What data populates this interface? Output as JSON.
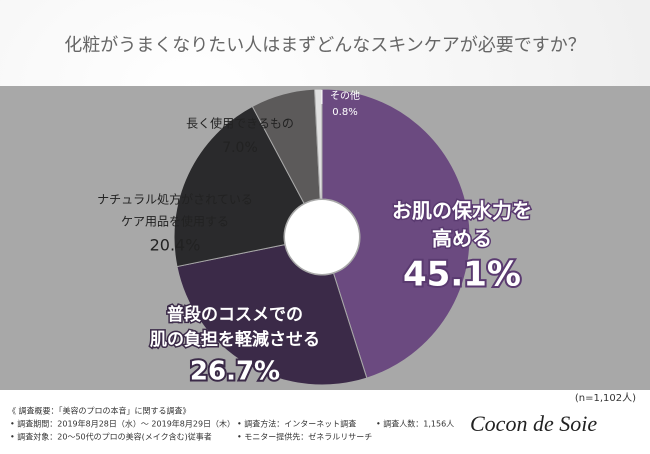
{
  "chart_data": {
    "type": "donut",
    "title": "化粧がうまくなりたい人はまずどんなスキンケアが必要ですか？",
    "categories": [
      [
        "お肌の保水力を",
        "高める"
      ],
      [
        "普段のコスメでの",
        "肌の負担を軽減させる"
      ],
      [
        "ナチュラル処方がされている",
        "ケア用品を使用する"
      ],
      [
        "長く使用できるもの"
      ],
      [
        "その他"
      ]
    ],
    "values": [
      45.1,
      26.7,
      20.4,
      7.0,
      0.8
    ],
    "value_labels": [
      "45.1%",
      "26.7%",
      "20.4%",
      "7.0%",
      "0.8%"
    ],
    "colors": [
      "#6b4a80",
      "#3b2a48",
      "#2a2a2c",
      "#5c5a5a",
      "#e0e0e0"
    ],
    "sample": "(n=1,102人)",
    "notes": [
      "《 調査概要：「美容のプロの本音」に関する調査》",
      "• 調査期間：2019年8月28日（水）～ 2019年8月29日（木）",
      "• 調査方法：インターネット調査",
      "• 調査人数：1,156人",
      "• 調査対象：20～50代のプロの美容(メイク含む)従事者",
      "• モニター提供先：ゼネラルリサーチ"
    ],
    "logo": "Cocon de Soie"
  }
}
